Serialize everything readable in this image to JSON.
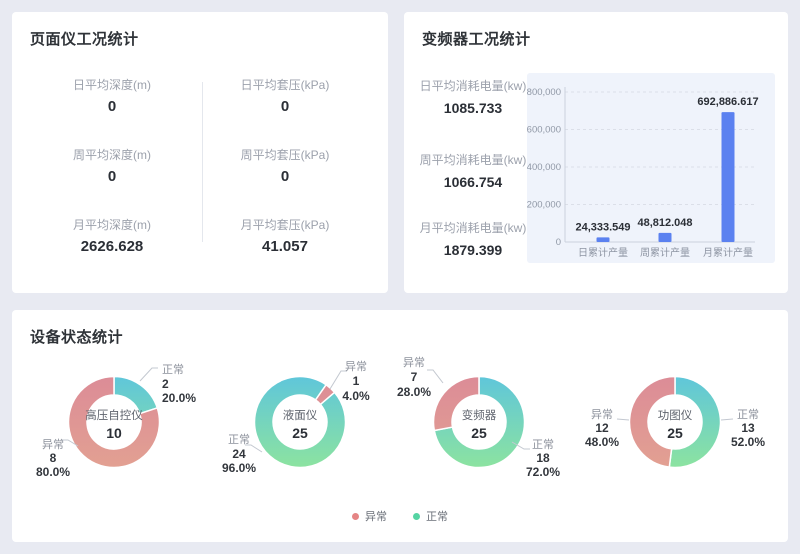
{
  "page": {
    "background": "#E8EAF2",
    "panel_background": "#FFFFFF"
  },
  "panels": {
    "gauge": {
      "title": "页面仪工况统计",
      "stats": [
        {
          "label": "日平均深度(m)",
          "value": "0"
        },
        {
          "label": "日平均套压(kPa)",
          "value": "0"
        },
        {
          "label": "周平均深度(m)",
          "value": "0"
        },
        {
          "label": "周平均套压(kPa)",
          "value": "0"
        },
        {
          "label": "月平均深度(m)",
          "value": "2626.628"
        },
        {
          "label": "月平均套压(kPa)",
          "value": "41.057"
        }
      ]
    },
    "inverter": {
      "title": "变频器工况统计",
      "stats": [
        {
          "label": "日平均消耗电量(kw)",
          "value": "1085.733"
        },
        {
          "label": "周平均消耗电量(kw)",
          "value": "1066.754"
        },
        {
          "label": "月平均消耗电量(kw)",
          "value": "1879.399"
        }
      ]
    },
    "devices": {
      "title": "设备状态统计"
    }
  },
  "chart_data": [
    {
      "type": "bar",
      "title": "",
      "categories": [
        "日累计产量",
        "周累计产量",
        "月累计产量"
      ],
      "values": [
        24333.549,
        48812.048,
        692886.617
      ],
      "value_labels": [
        "24,333.549",
        "48,812.048",
        "692,886.617"
      ],
      "xlabel": "",
      "ylabel": "",
      "ylim": [
        0,
        800000
      ],
      "ytick_labels": [
        "0",
        "200,000",
        "400,000",
        "600,000",
        "800,000"
      ],
      "grid": true,
      "legend_position": "none",
      "bar_color": "#5B81F0",
      "plot_background": "#EFF3FB"
    },
    {
      "type": "pie",
      "name": "高压自控仪",
      "total": 10,
      "slices": [
        {
          "label": "正常",
          "value": 2,
          "percent": "20.0%",
          "role": "normal"
        },
        {
          "label": "异常",
          "value": 8,
          "percent": "80.0%",
          "role": "abnormal"
        }
      ]
    },
    {
      "type": "pie",
      "name": "液面仪",
      "total": 25,
      "slices": [
        {
          "label": "异常",
          "value": 1,
          "percent": "4.0%",
          "role": "abnormal"
        },
        {
          "label": "正常",
          "value": 24,
          "percent": "96.0%",
          "role": "normal"
        }
      ]
    },
    {
      "type": "pie",
      "name": "变频器",
      "total": 25,
      "slices": [
        {
          "label": "正常",
          "value": 18,
          "percent": "72.0%",
          "role": "normal"
        },
        {
          "label": "异常",
          "value": 7,
          "percent": "28.0%",
          "role": "abnormal"
        }
      ]
    },
    {
      "type": "pie",
      "name": "功图仪",
      "total": 25,
      "slices": [
        {
          "label": "正常",
          "value": 13,
          "percent": "52.0%",
          "role": "normal"
        },
        {
          "label": "异常",
          "value": 12,
          "percent": "48.0%",
          "role": "abnormal"
        }
      ]
    }
  ],
  "donut_colors": {
    "normal": [
      "#5FC6DA",
      "#8CE3A0"
    ],
    "abnormal": [
      "#DC8C97",
      "#E2A092"
    ]
  },
  "legend": {
    "items": [
      {
        "label": "异常",
        "color": "#E58585"
      },
      {
        "label": "正常",
        "color": "#55D4A3"
      }
    ]
  }
}
